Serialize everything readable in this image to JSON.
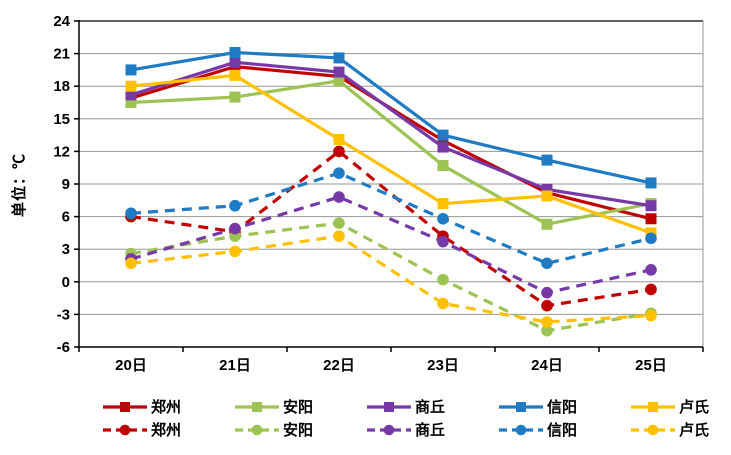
{
  "chart_data": {
    "type": "line",
    "title": "",
    "ylabel": "单位：℃",
    "xlabel": "",
    "categories": [
      "20日",
      "21日",
      "22日",
      "23日",
      "24日",
      "25日"
    ],
    "ylim": [
      -6,
      24
    ],
    "ytick_step": 3,
    "yticks": [
      24,
      21,
      18,
      15,
      12,
      9,
      6,
      3,
      0,
      -3,
      -6
    ],
    "grid": true,
    "legend_position": "bottom",
    "grid_color": "#969696",
    "axis_color": "#000000",
    "series": [
      {
        "name": "郑州",
        "line_style": "solid",
        "marker": "square",
        "color": "#C00000",
        "values": [
          16.9,
          19.8,
          18.9,
          13.0,
          8.2,
          5.8
        ]
      },
      {
        "name": "安阳",
        "line_style": "solid",
        "marker": "square",
        "color": "#9DC352",
        "values": [
          16.5,
          17.0,
          18.5,
          10.7,
          5.3,
          7.2
        ]
      },
      {
        "name": "商丘",
        "line_style": "solid",
        "marker": "square",
        "color": "#7839A8",
        "values": [
          17.2,
          20.2,
          19.3,
          12.4,
          8.5,
          7.0
        ]
      },
      {
        "name": "信阳",
        "line_style": "solid",
        "marker": "square",
        "color": "#1E7BC4",
        "values": [
          19.5,
          21.1,
          20.6,
          13.5,
          11.2,
          9.1
        ]
      },
      {
        "name": "卢氏",
        "line_style": "solid",
        "marker": "square",
        "color": "#FFC000",
        "values": [
          18.0,
          19.0,
          13.1,
          7.2,
          7.9,
          4.5
        ]
      },
      {
        "name": "郑州",
        "line_style": "dashed",
        "marker": "circle",
        "color": "#C00000",
        "values": [
          6.0,
          4.6,
          12.0,
          4.2,
          -2.2,
          -0.7
        ]
      },
      {
        "name": "安阳",
        "line_style": "dashed",
        "marker": "circle",
        "color": "#9DC352",
        "values": [
          2.6,
          4.2,
          5.4,
          0.2,
          -4.5,
          -2.9
        ]
      },
      {
        "name": "商丘",
        "line_style": "dashed",
        "marker": "circle",
        "color": "#7839A8",
        "values": [
          2.1,
          4.9,
          7.8,
          3.7,
          -1.0,
          1.1
        ]
      },
      {
        "name": "信阳",
        "line_style": "dashed",
        "marker": "circle",
        "color": "#1E7BC4",
        "values": [
          6.3,
          7.0,
          10.0,
          5.8,
          1.7,
          4.0
        ]
      },
      {
        "name": "卢氏",
        "line_style": "dashed",
        "marker": "circle",
        "color": "#FFC000",
        "values": [
          1.7,
          2.8,
          4.2,
          -2.0,
          -3.7,
          -3.1
        ]
      }
    ]
  }
}
